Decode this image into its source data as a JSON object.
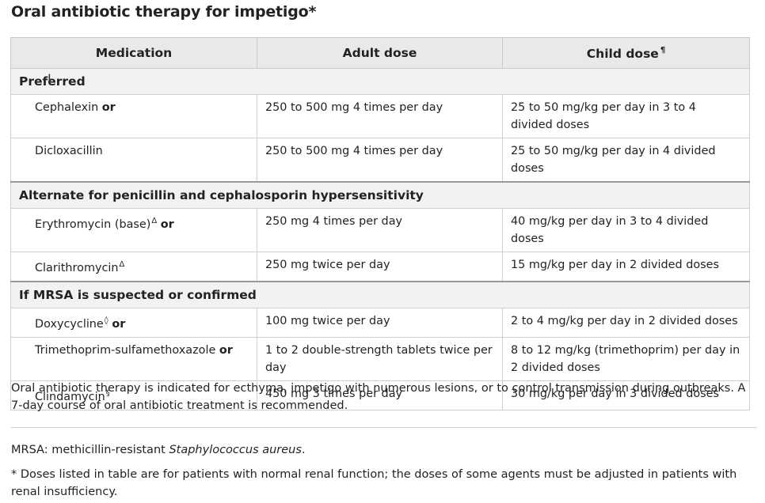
{
  "title": "Oral antibiotic therapy for impetigo*",
  "headers": {
    "medication": "Medication",
    "adult": "Adult dose",
    "child": "Child dose",
    "child_mark": "¶"
  },
  "sections": [
    {
      "heading": "Preferred",
      "rows": [
        {
          "med": "Cephalexin",
          "mark": "",
          "or": "or",
          "adult": "250 to 500 mg 4 times per day",
          "child": "25 to 50 mg/kg per day in 3 to 4 divided doses"
        },
        {
          "med": "Dicloxacillin",
          "mark": "",
          "or": "",
          "adult": "250 to 500 mg 4 times per day",
          "child": "25 to 50 mg/kg per day in 4 divided doses"
        }
      ]
    },
    {
      "heading": "Alternate for penicillin and cephalosporin hypersensitivity",
      "rows": [
        {
          "med": "Erythromycin (base)",
          "mark": "Δ",
          "or": "or",
          "adult": "250 mg 4 times per day",
          "child": "40 mg/kg per day in 3 to 4 divided doses"
        },
        {
          "med": "Clarithromycin",
          "mark": "Δ",
          "or": "",
          "adult": "250 mg twice per day",
          "child": "15 mg/kg per day in 2 divided doses"
        }
      ]
    },
    {
      "heading": "If MRSA is suspected or confirmed",
      "rows": [
        {
          "med": "Doxycycline",
          "mark": "◊",
          "or": "or",
          "adult": "100 mg twice per day",
          "child": "2 to 4 mg/kg per day in 2 divided doses"
        },
        {
          "med": "Trimethoprim-sulfamethoxazole",
          "mark": "",
          "or": "or",
          "adult": "1 to 2 double-strength tablets twice per day",
          "child": "8 to 12 mg/kg (trimethoprim) per day in 2 divided doses"
        },
        {
          "med": "Clindamycin",
          "mark": "§",
          "or": "",
          "adult": "450 mg 3 times per day",
          "child": "30 mg/kg per day in 3 divided doses"
        }
      ]
    }
  ],
  "note": "Oral antibiotic therapy is indicated for ecthyma, impetigo with numerous lesions, or to control transmission during outbreaks. A 7-day course of oral antibiotic treatment is recommended.",
  "abbr_prefix": "MRSA: methicillin-resistant ",
  "abbr_italic": "Staphylococcus aureus",
  "abbr_suffix": ".",
  "footnote": "* Doses listed in table are for patients with normal renal function; the doses of some agents must be adjusted in patients with renal insufficiency."
}
